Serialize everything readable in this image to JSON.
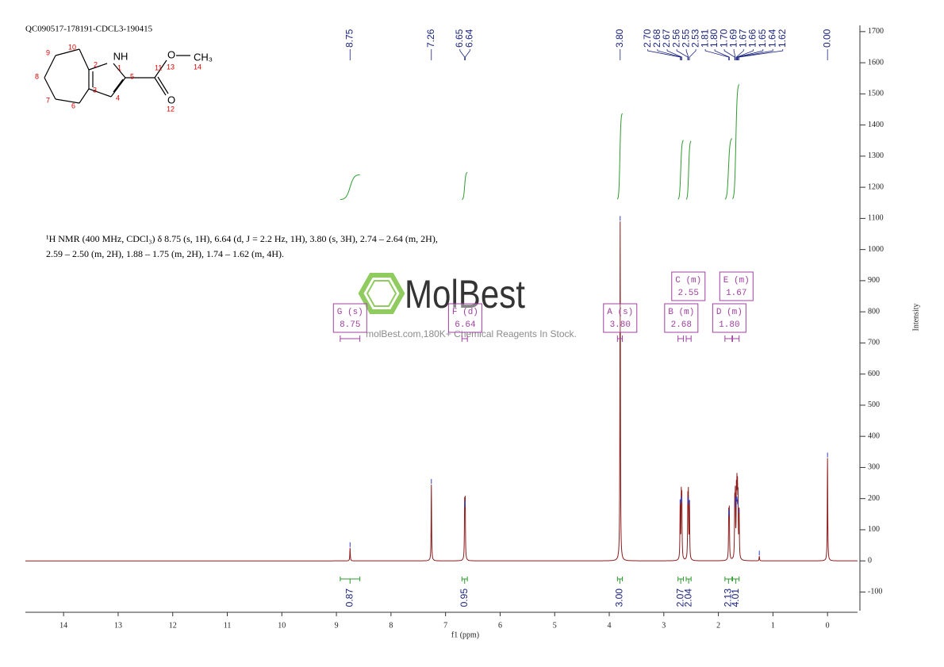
{
  "chart_data": {
    "type": "nmr",
    "title": "QC090517-178191-CDCL3-190415",
    "description": [
      "¹H NMR (400 MHz, CDCl₃) δ 8.75 (s, 1H), 6.64 (d, J = 2.2 Hz, 1H), 3.80 (s, 3H), 2.74 – 2.64 (m, 2H),",
      "2.59 – 2.50 (m, 2H), 1.88 – 1.75 (m, 2H), 1.74 – 1.62 (m, 4H)."
    ],
    "xlabel": "f1 (ppm)",
    "ylabel": "Intensity",
    "xlim": [
      14.7,
      -0.55
    ],
    "xticks": [
      14,
      13,
      12,
      11,
      10,
      9,
      8,
      7,
      6,
      5,
      4,
      3,
      2,
      1,
      0
    ],
    "ylim": [
      -160,
      1720
    ],
    "yticks": [
      -100,
      0,
      100,
      200,
      300,
      400,
      500,
      600,
      700,
      800,
      900,
      1000,
      1100,
      1200,
      1300,
      1400,
      1500,
      1600,
      1700
    ],
    "color": "#8b1a1a",
    "peaks": {
      "x": [
        8.75,
        7.26,
        6.65,
        6.64,
        3.8,
        2.7,
        2.68,
        2.67,
        2.56,
        2.55,
        2.53,
        1.81,
        1.8,
        1.7,
        1.69,
        1.67,
        1.66,
        1.65,
        1.64,
        1.62,
        1.25,
        0
      ],
      "values": [
        42,
        245,
        170,
        175,
        1090,
        180,
        190,
        183,
        180,
        190,
        178,
        140,
        148,
        170,
        185,
        190,
        188,
        180,
        172,
        150,
        15,
        330
      ]
    },
    "peak_labels": [
      8.75,
      7.26,
      6.65,
      6.64,
      {
        "value": 3.8,
        "label": "3.80"
      },
      {
        "value": 2.7,
        "label": "2.70"
      },
      2.68,
      2.67,
      2.56,
      2.55,
      2.53,
      1.81,
      {
        "value": 1.8,
        "label": "1.80"
      },
      {
        "value": 1.7,
        "label": "1.70"
      },
      1.69,
      1.67,
      1.66,
      1.65,
      1.64,
      1.62,
      {
        "value": 0,
        "label": "0.00"
      }
    ],
    "integrals": {
      "values": [
        0.87,
        0.95,
        {
          "value": 3,
          "label": "3.00"
        },
        2.07,
        2.04,
        2.13,
        4.01
      ],
      "ranges": [
        [
          8.93,
          8.57
        ],
        [
          6.7,
          6.6
        ],
        [
          3.85,
          3.76
        ],
        [
          2.74,
          2.64
        ],
        [
          2.59,
          2.5
        ],
        [
          1.88,
          1.75
        ],
        [
          1.74,
          1.62
        ]
      ]
    },
    "multiplets": [
      {
        "label": "G (s)",
        "shift": 8.75,
        "range": [
          8.93,
          8.57
        ]
      },
      {
        "label": "F (d)",
        "shift": 6.64,
        "range": [
          6.7,
          6.6
        ]
      },
      {
        "label": "A (s)",
        "shift": {
          "value": 3.8,
          "label": "3.80"
        },
        "range": [
          3.85,
          3.76
        ]
      },
      {
        "label": "B (m)",
        "shift": 2.68,
        "range": [
          2.74,
          2.64
        ]
      },
      {
        "label": "C (m)",
        "shift": 2.55,
        "range": [
          2.59,
          2.5
        ]
      },
      {
        "label": "D (m)",
        "shift": {
          "value": 1.8,
          "label": "1.80"
        },
        "range": [
          1.88,
          1.75
        ]
      },
      {
        "label": "E (m)",
        "shift": 1.67,
        "range": [
          1.74,
          1.62
        ]
      }
    ]
  },
  "structure": {
    "atoms": [
      "NH",
      "O",
      "CH₃",
      "O"
    ],
    "numbers": [
      "1",
      "2",
      "3",
      "4",
      "5",
      "6",
      "7",
      "8",
      "9",
      "10",
      "11",
      "12",
      "13",
      "14"
    ]
  },
  "watermark": {
    "brand": "MolBest",
    "tagline": "molBest.com,180K+ Chemical Reagents In Stock."
  }
}
